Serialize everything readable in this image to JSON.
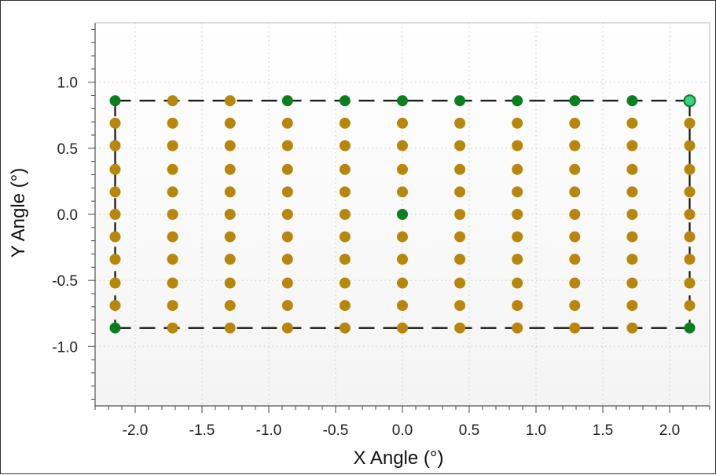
{
  "chart_data": {
    "type": "scatter",
    "title": "",
    "xlabel": "X Angle (°)",
    "ylabel": "Y Angle (°)",
    "xlim": [
      -2.3,
      2.3
    ],
    "ylim": [
      -1.45,
      1.45
    ],
    "x_ticks": [
      -2.0,
      -1.5,
      -1.0,
      -0.5,
      0.0,
      0.5,
      1.0,
      1.5,
      2.0
    ],
    "x_tick_labels": [
      "-2.0",
      "-1.5",
      "-1.0",
      "-0.5",
      "0.0",
      "0.5",
      "1.0",
      "1.5",
      "2.0"
    ],
    "y_ticks": [
      1.0,
      0.5,
      0.0,
      -0.5,
      -1.0
    ],
    "y_tick_labels": [
      "1.0",
      "0.5",
      "0.0",
      "-0.5",
      "-1.0"
    ],
    "grid": true,
    "grid_style": "dotted",
    "colors": {
      "gold": "#b8860b",
      "green": "#0a7f1e",
      "highlight": "#3ccf8e",
      "boundary": "#111111",
      "plot_bg": "#f9f9f9",
      "grid": "#c8c8c8"
    },
    "columns_x": [
      -2.15,
      -1.72,
      -1.29,
      -0.86,
      -0.43,
      0.0,
      0.43,
      0.86,
      1.29,
      1.72,
      2.15
    ],
    "rows_y": [
      0.86,
      0.69,
      0.52,
      0.34,
      0.17,
      0.0,
      -0.17,
      -0.34,
      -0.52,
      -0.69,
      -0.86
    ],
    "green_points": [
      {
        "x": -2.15,
        "y": 0.86
      },
      {
        "x": -0.86,
        "y": 0.86
      },
      {
        "x": -0.43,
        "y": 0.86
      },
      {
        "x": 0.0,
        "y": 0.86
      },
      {
        "x": 0.43,
        "y": 0.86
      },
      {
        "x": 0.86,
        "y": 0.86
      },
      {
        "x": 1.29,
        "y": 0.86
      },
      {
        "x": 1.72,
        "y": 0.86
      },
      {
        "x": -2.15,
        "y": -0.86
      },
      {
        "x": 2.15,
        "y": -0.86
      },
      {
        "x": 0.0,
        "y": 0.0
      }
    ],
    "highlight_points": [
      {
        "x": 2.15,
        "y": 0.86
      }
    ],
    "boundary": {
      "x_min": -2.15,
      "x_max": 2.15,
      "y_min": -0.86,
      "y_max": 0.86,
      "style": "dashed"
    }
  }
}
